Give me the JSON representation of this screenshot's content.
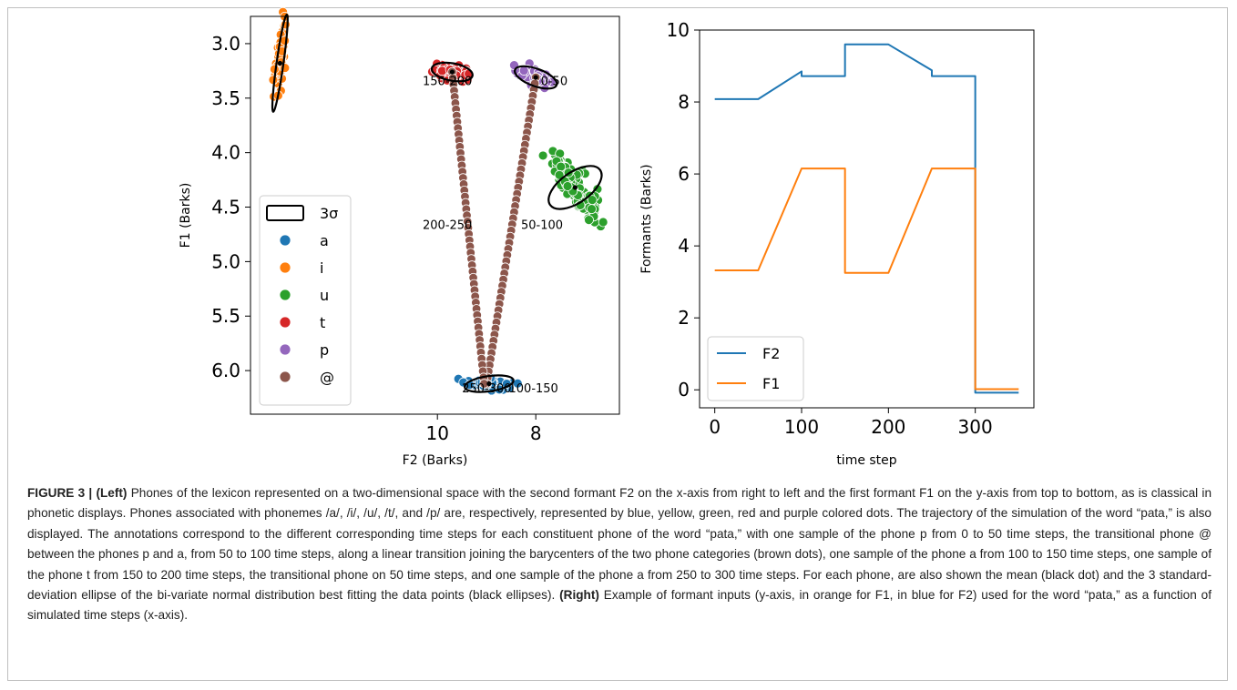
{
  "chart_data": [
    {
      "type": "scatter",
      "title": "",
      "xlabel": "F2 (Barks)",
      "ylabel": "F1 (Barks)",
      "xlim": [
        13.8,
        6.3
      ],
      "ylim": [
        6.4,
        2.75
      ],
      "x_axis_reversed": true,
      "y_axis_reversed": true,
      "xticks": [
        10,
        8
      ],
      "yticks": [
        3.0,
        3.5,
        4.0,
        4.5,
        5.0,
        5.5,
        6.0
      ],
      "ytick_labels": [
        "3.0",
        "3.5",
        "4.0",
        "4.5",
        "5.0",
        "5.5",
        "6.0"
      ],
      "grid": false,
      "legend_placement": "lower-left",
      "legend": [
        {
          "label": "3σ",
          "kind": "ellipse",
          "color": "#000000"
        },
        {
          "label": "a",
          "color": "#1f77b4"
        },
        {
          "label": "i",
          "color": "#ff7f0e"
        },
        {
          "label": "u",
          "color": "#2ca02c"
        },
        {
          "label": "t",
          "color": "#d62728"
        },
        {
          "label": "p",
          "color": "#9467bd"
        },
        {
          "label": "@",
          "color": "#8c564b"
        }
      ],
      "clusters": [
        {
          "name": "a",
          "color": "#1f77b4",
          "mean": [
            8.95,
            6.12
          ],
          "sd": [
            0.22,
            0.03
          ],
          "corr": -0.3,
          "n": 60
        },
        {
          "name": "i",
          "color": "#ff7f0e",
          "mean": [
            13.2,
            3.18
          ],
          "sd": [
            0.05,
            0.16
          ],
          "corr": 0.6,
          "n": 60
        },
        {
          "name": "u",
          "color": "#2ca02c",
          "mean": [
            7.2,
            4.32
          ],
          "sd": [
            0.24,
            0.14
          ],
          "corr": -0.85,
          "n": 170
        },
        {
          "name": "t",
          "color": "#d62728",
          "mean": [
            9.7,
            3.26
          ],
          "sd": [
            0.19,
            0.035
          ],
          "corr": -0.2,
          "n": 60
        },
        {
          "name": "p",
          "color": "#9467bd",
          "mean": [
            8.0,
            3.31
          ],
          "sd": [
            0.18,
            0.04
          ],
          "corr": -0.55,
          "n": 60
        }
      ],
      "ellipses": [
        {
          "name": "a",
          "center": [
            8.95,
            6.12
          ],
          "rx": 0.5,
          "ry": 0.07,
          "angle": -8
        },
        {
          "name": "i",
          "center": [
            13.2,
            3.18
          ],
          "rx": 0.07,
          "ry": 0.45,
          "angle": 8
        },
        {
          "name": "u",
          "center": [
            7.2,
            4.32
          ],
          "rx": 0.62,
          "ry": 0.14,
          "angle": -35
        },
        {
          "name": "t",
          "center": [
            9.7,
            3.26
          ],
          "rx": 0.42,
          "ry": 0.08,
          "angle": 10
        },
        {
          "name": "p",
          "center": [
            8.0,
            3.31
          ],
          "rx": 0.45,
          "ry": 0.08,
          "angle": 20
        }
      ],
      "trajectory": {
        "name": "@",
        "color": "#8c564b",
        "segments": [
          {
            "from": [
              8.0,
              3.31
            ],
            "to": [
              9.0,
              6.12
            ],
            "n": 50
          },
          {
            "from": [
              9.7,
              3.26
            ],
            "to": [
              9.05,
              6.12
            ],
            "n": 50
          }
        ]
      },
      "annotations": [
        {
          "text": "0-50",
          "x": 7.9,
          "y": 3.38
        },
        {
          "text": "50-100",
          "x": 8.3,
          "y": 4.7
        },
        {
          "text": "100-150",
          "x": 8.55,
          "y": 6.2
        },
        {
          "text": "150-200",
          "x": 10.3,
          "y": 3.38
        },
        {
          "text": "200-250",
          "x": 10.3,
          "y": 4.7
        },
        {
          "text": "250-300",
          "x": 9.5,
          "y": 6.2
        }
      ]
    },
    {
      "type": "line",
      "title": "",
      "xlabel": "time step",
      "ylabel": "Formants (Barks)",
      "xlim": [
        -17.5,
        367.5
      ],
      "ylim": [
        -0.5,
        10.0
      ],
      "xticks": [
        0,
        100,
        200,
        300
      ],
      "yticks": [
        0,
        2,
        4,
        6,
        8,
        10
      ],
      "grid": false,
      "legend_placement": "lower-left",
      "series": [
        {
          "name": "F2",
          "color": "#1f77b4",
          "points": [
            [
              0,
              8.08
            ],
            [
              50,
              8.08
            ],
            [
              100,
              8.85
            ],
            [
              100,
              8.72
            ],
            [
              150,
              8.72
            ],
            [
              150,
              9.6
            ],
            [
              200,
              9.6
            ],
            [
              250,
              8.88
            ],
            [
              250,
              8.72
            ],
            [
              300,
              8.72
            ],
            [
              300,
              -0.08
            ],
            [
              350,
              -0.08
            ]
          ]
        },
        {
          "name": "F1",
          "color": "#ff7f0e",
          "points": [
            [
              0,
              3.32
            ],
            [
              50,
              3.32
            ],
            [
              100,
              6.15
            ],
            [
              150,
              6.15
            ],
            [
              150,
              3.25
            ],
            [
              200,
              3.25
            ],
            [
              250,
              6.15
            ],
            [
              300,
              6.15
            ],
            [
              300,
              0.02
            ],
            [
              350,
              0.02
            ]
          ]
        }
      ]
    }
  ],
  "caption": {
    "figure_label": "FIGURE 3 |",
    "left_label": "(Left)",
    "left_text": "Phones of the lexicon represented on a two-dimensional space with the second formant F2 on the x-axis from right to left and the first formant F1 on the y-axis from top to bottom, as is classical in phonetic displays. Phones associated with phonemes /a/, /i/, /u/, /t/, and /p/ are, respectively, represented by blue, yellow, green, red and purple colored dots. The trajectory of the simulation of the word “pata,” is also displayed. The annotations correspond to the different corresponding time steps for each constituent phone of the word “pata,” with one sample of the phone p from 0 to 50 time steps, the transitional phone @ between the phones p and a, from 50 to 100 time steps, along a linear transition joining the barycenters of the two phone categories (brown dots), one sample of the phone a from 100 to 150 time steps, one sample of the phone t from 150 to 200 time steps, the transitional phone on 50 time steps, and one sample of the phone a from 250 to 300 time steps. For each phone, are also shown the mean (black dot) and the 3 standard-deviation ellipse of the bi-variate normal distribution best fitting the data points (black ellipses).",
    "right_label": "(Right)",
    "right_text": "Example of formant inputs (y-axis, in orange for F1, in blue for F2) used for the word “pata,” as a function of simulated time steps (x-axis)."
  }
}
